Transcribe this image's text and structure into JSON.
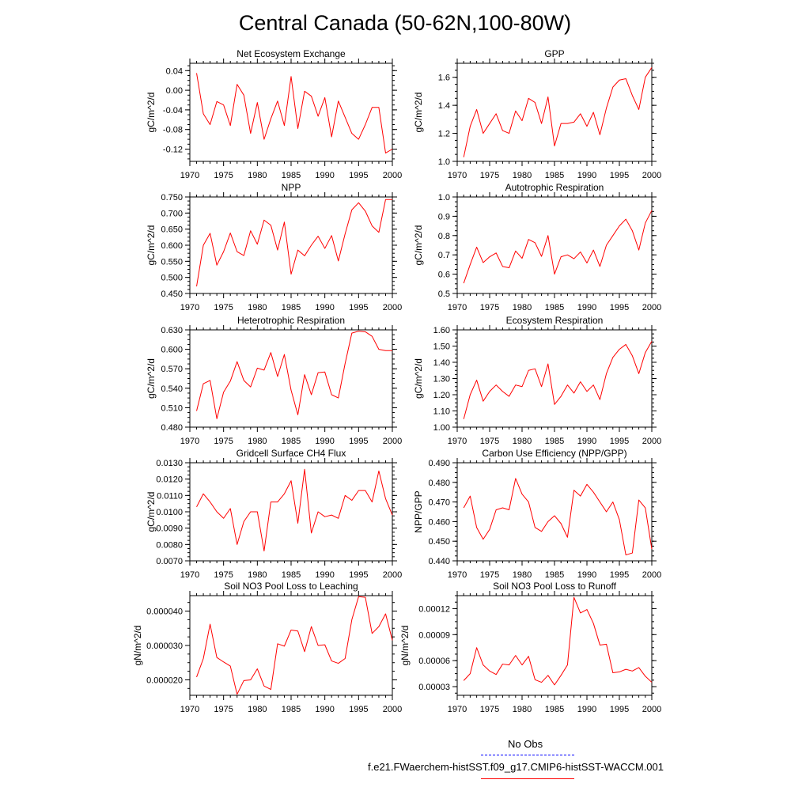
{
  "title": "Central Canada (50-62N,100-80W)",
  "legend": {
    "entries": [
      {
        "label": "No Obs",
        "color": "#0000ff",
        "style": "dashed"
      },
      {
        "label": "f.e21.FWaerchem-histSST.f09_g17.CMIP6-histSST-WACCM.001",
        "color": "#ff0000",
        "style": "solid"
      }
    ]
  },
  "chart_data": [
    {
      "type": "line",
      "title": "Net Ecosystem Exchange",
      "ylabel": "gC/m^2/d",
      "xlim": [
        1970,
        2000
      ],
      "ylim": [
        -0.145,
        0.055
      ],
      "xticks": [
        1970,
        1975,
        1980,
        1985,
        1990,
        1995,
        2000
      ],
      "yticks": [
        "0.04",
        "0.00",
        "-0.04",
        "-0.08",
        "-0.12"
      ],
      "yminor": 0.01,
      "series": [
        {
          "color": "#ff0000",
          "x": [
            1971,
            1972,
            1973,
            1974,
            1975,
            1976,
            1977,
            1978,
            1979,
            1980,
            1981,
            1982,
            1983,
            1984,
            1985,
            1986,
            1987,
            1988,
            1989,
            1990,
            1991,
            1992,
            1993,
            1994,
            1995,
            1996,
            1997,
            1998,
            1999,
            2000
          ],
          "values": [
            0.035,
            -0.048,
            -0.07,
            -0.023,
            -0.03,
            -0.072,
            0.012,
            -0.01,
            -0.088,
            -0.025,
            -0.1,
            -0.058,
            -0.022,
            -0.072,
            0.028,
            -0.078,
            -0.002,
            -0.012,
            -0.053,
            -0.015,
            -0.095,
            -0.022,
            -0.055,
            -0.088,
            -0.1,
            -0.07,
            -0.035,
            -0.035,
            -0.128,
            -0.12
          ]
        }
      ]
    },
    {
      "type": "line",
      "title": "GPP",
      "ylabel": "gC/m^2/d",
      "xlim": [
        1970,
        2000
      ],
      "ylim": [
        1.0,
        1.7
      ],
      "xticks": [
        1970,
        1975,
        1980,
        1985,
        1990,
        1995,
        2000
      ],
      "yticks": [
        "1.0",
        "1.2",
        "1.4",
        "1.6"
      ],
      "yminor": 0.05,
      "series": [
        {
          "color": "#ff0000",
          "x": [
            1971,
            1972,
            1973,
            1974,
            1975,
            1976,
            1977,
            1978,
            1979,
            1980,
            1981,
            1982,
            1983,
            1984,
            1985,
            1986,
            1987,
            1988,
            1989,
            1990,
            1991,
            1992,
            1993,
            1994,
            1995,
            1996,
            1997,
            1998,
            1999,
            2000
          ],
          "values": [
            1.03,
            1.25,
            1.37,
            1.2,
            1.27,
            1.34,
            1.22,
            1.2,
            1.36,
            1.29,
            1.45,
            1.42,
            1.27,
            1.46,
            1.11,
            1.27,
            1.27,
            1.28,
            1.34,
            1.25,
            1.35,
            1.19,
            1.38,
            1.53,
            1.58,
            1.59,
            1.47,
            1.37,
            1.6,
            1.67
          ]
        }
      ]
    },
    {
      "type": "line",
      "title": "NPP",
      "ylabel": "gC/m^2/d",
      "xlim": [
        1970,
        2000
      ],
      "ylim": [
        0.45,
        0.75
      ],
      "xticks": [
        1970,
        1975,
        1980,
        1985,
        1990,
        1995,
        2000
      ],
      "yticks": [
        "0.750",
        "0.700",
        "0.650",
        "0.600",
        "0.550",
        "0.500",
        "0.450"
      ],
      "yminor": 0.0125,
      "series": [
        {
          "color": "#ff0000",
          "x": [
            1971,
            1972,
            1973,
            1974,
            1975,
            1976,
            1977,
            1978,
            1979,
            1980,
            1981,
            1982,
            1983,
            1984,
            1985,
            1986,
            1987,
            1988,
            1989,
            1990,
            1991,
            1992,
            1993,
            1994,
            1995,
            1996,
            1997,
            1998,
            1999,
            2000
          ],
          "values": [
            0.472,
            0.6,
            0.637,
            0.538,
            0.58,
            0.638,
            0.58,
            0.568,
            0.645,
            0.603,
            0.678,
            0.662,
            0.585,
            0.672,
            0.51,
            0.585,
            0.567,
            0.6,
            0.628,
            0.59,
            0.63,
            0.551,
            0.635,
            0.71,
            0.732,
            0.706,
            0.66,
            0.64,
            0.742,
            0.742
          ]
        }
      ]
    },
    {
      "type": "line",
      "title": "Autotrophic Respiration",
      "ylabel": "gC/m^2/d",
      "xlim": [
        1970,
        2000
      ],
      "ylim": [
        0.5,
        1.0
      ],
      "xticks": [
        1970,
        1975,
        1980,
        1985,
        1990,
        1995,
        2000
      ],
      "yticks": [
        "1.0",
        "0.9",
        "0.8",
        "0.7",
        "0.6",
        "0.5"
      ],
      "yminor": 0.025,
      "series": [
        {
          "color": "#ff0000",
          "x": [
            1971,
            1972,
            1973,
            1974,
            1975,
            1976,
            1977,
            1978,
            1979,
            1980,
            1981,
            1982,
            1983,
            1984,
            1985,
            1986,
            1987,
            1988,
            1989,
            1990,
            1991,
            1992,
            1993,
            1994,
            1995,
            1996,
            1997,
            1998,
            1999,
            2000
          ],
          "values": [
            0.553,
            0.65,
            0.74,
            0.66,
            0.69,
            0.71,
            0.64,
            0.633,
            0.72,
            0.682,
            0.78,
            0.763,
            0.692,
            0.8,
            0.6,
            0.69,
            0.7,
            0.68,
            0.715,
            0.658,
            0.725,
            0.64,
            0.75,
            0.8,
            0.85,
            0.885,
            0.825,
            0.725,
            0.865,
            0.93
          ]
        }
      ]
    },
    {
      "type": "line",
      "title": "Heterotrophic Respiration",
      "ylabel": "gC/m^2/d",
      "xlim": [
        1970,
        2000
      ],
      "ylim": [
        0.48,
        0.63
      ],
      "xticks": [
        1970,
        1975,
        1980,
        1985,
        1990,
        1995,
        2000
      ],
      "yticks": [
        "0.630",
        "0.600",
        "0.570",
        "0.540",
        "0.510",
        "0.480"
      ],
      "yminor": 0.0075,
      "series": [
        {
          "color": "#ff0000",
          "x": [
            1971,
            1972,
            1973,
            1974,
            1975,
            1976,
            1977,
            1978,
            1979,
            1980,
            1981,
            1982,
            1983,
            1984,
            1985,
            1986,
            1987,
            1988,
            1989,
            1990,
            1991,
            1992,
            1993,
            1994,
            1995,
            1996,
            1997,
            1998,
            1999,
            2000
          ],
          "values": [
            0.505,
            0.547,
            0.552,
            0.493,
            0.534,
            0.551,
            0.581,
            0.552,
            0.542,
            0.571,
            0.568,
            0.595,
            0.558,
            0.592,
            0.537,
            0.499,
            0.561,
            0.53,
            0.564,
            0.565,
            0.53,
            0.525,
            0.578,
            0.625,
            0.628,
            0.627,
            0.62,
            0.6,
            0.598,
            0.598
          ]
        }
      ]
    },
    {
      "type": "line",
      "title": "Ecosystem Respiration",
      "ylabel": "gC/m^2/d",
      "xlim": [
        1970,
        2000
      ],
      "ylim": [
        1.0,
        1.6
      ],
      "xticks": [
        1970,
        1975,
        1980,
        1985,
        1990,
        1995,
        2000
      ],
      "yticks": [
        "1.60",
        "1.50",
        "1.40",
        "1.30",
        "1.20",
        "1.10",
        "1.00"
      ],
      "yminor": 0.025,
      "series": [
        {
          "color": "#ff0000",
          "x": [
            1971,
            1972,
            1973,
            1974,
            1975,
            1976,
            1977,
            1978,
            1979,
            1980,
            1981,
            1982,
            1983,
            1984,
            1985,
            1986,
            1987,
            1988,
            1989,
            1990,
            1991,
            1992,
            1993,
            1994,
            1995,
            1996,
            1997,
            1998,
            1999,
            2000
          ],
          "values": [
            1.05,
            1.2,
            1.29,
            1.16,
            1.22,
            1.26,
            1.22,
            1.19,
            1.26,
            1.25,
            1.35,
            1.36,
            1.25,
            1.39,
            1.14,
            1.19,
            1.26,
            1.21,
            1.28,
            1.22,
            1.26,
            1.17,
            1.33,
            1.43,
            1.48,
            1.51,
            1.44,
            1.33,
            1.46,
            1.53
          ]
        }
      ]
    },
    {
      "type": "line",
      "title": "Gridcell Surface CH4 Flux",
      "ylabel": "gC/m^2/d",
      "xlim": [
        1970,
        2000
      ],
      "ylim": [
        0.007,
        0.013
      ],
      "xticks": [
        1970,
        1975,
        1980,
        1985,
        1990,
        1995,
        2000
      ],
      "yticks": [
        "0.0130",
        "0.0120",
        "0.0110",
        "0.0100",
        "0.0090",
        "0.0080",
        "0.0070"
      ],
      "yminor": 0.00025,
      "series": [
        {
          "color": "#ff0000",
          "x": [
            1971,
            1972,
            1973,
            1974,
            1975,
            1976,
            1977,
            1978,
            1979,
            1980,
            1981,
            1982,
            1983,
            1984,
            1985,
            1986,
            1987,
            1988,
            1989,
            1990,
            1991,
            1992,
            1993,
            1994,
            1995,
            1996,
            1997,
            1998,
            1999,
            2000
          ],
          "values": [
            0.0103,
            0.0111,
            0.0106,
            0.01,
            0.0096,
            0.0102,
            0.008,
            0.0094,
            0.01,
            0.01,
            0.0076,
            0.0106,
            0.0106,
            0.0111,
            0.0119,
            0.0093,
            0.0126,
            0.0087,
            0.01,
            0.0097,
            0.0098,
            0.0096,
            0.011,
            0.0107,
            0.0113,
            0.0113,
            0.0106,
            0.0125,
            0.0108,
            0.0098
          ]
        }
      ]
    },
    {
      "type": "line",
      "title": "Carbon Use Efficiency (NPP/GPP)",
      "ylabel": "NPP/GPP",
      "xlim": [
        1970,
        2000
      ],
      "ylim": [
        0.44,
        0.49
      ],
      "xticks": [
        1970,
        1975,
        1980,
        1985,
        1990,
        1995,
        2000
      ],
      "yticks": [
        "0.490",
        "0.480",
        "0.470",
        "0.460",
        "0.450",
        "0.440"
      ],
      "yminor": 0.0025,
      "series": [
        {
          "color": "#ff0000",
          "x": [
            1971,
            1972,
            1973,
            1974,
            1975,
            1976,
            1977,
            1978,
            1979,
            1980,
            1981,
            1982,
            1983,
            1984,
            1985,
            1986,
            1987,
            1988,
            1989,
            1990,
            1991,
            1992,
            1993,
            1994,
            1995,
            1996,
            1997,
            1998,
            1999,
            2000
          ],
          "values": [
            0.467,
            0.473,
            0.457,
            0.451,
            0.456,
            0.466,
            0.467,
            0.466,
            0.482,
            0.474,
            0.47,
            0.457,
            0.455,
            0.46,
            0.463,
            0.459,
            0.452,
            0.476,
            0.473,
            0.479,
            0.475,
            0.47,
            0.465,
            0.47,
            0.461,
            0.443,
            0.444,
            0.471,
            0.467,
            0.446
          ]
        }
      ]
    },
    {
      "type": "line",
      "title": "Soil NO3 Pool Loss to Leaching",
      "ylabel": "gN/m^2/d",
      "xlim": [
        1970,
        2000
      ],
      "ylim": [
        1.55e-05,
        4.45e-05
      ],
      "xticks": [
        1970,
        1975,
        1980,
        1985,
        1990,
        1995,
        2000
      ],
      "yticks": [
        "0.000040",
        "0.000030",
        "0.000020"
      ],
      "yticks_values": [
        4e-05,
        3e-05,
        2e-05
      ],
      "yminor": 2.5e-06,
      "series": [
        {
          "color": "#ff0000",
          "x": [
            1971,
            1972,
            1973,
            1974,
            1975,
            1976,
            1977,
            1978,
            1979,
            1980,
            1981,
            1982,
            1983,
            1984,
            1985,
            1986,
            1987,
            1988,
            1989,
            1990,
            1991,
            1992,
            1993,
            1994,
            1995,
            1996,
            1997,
            1998,
            1999,
            2000
          ],
          "values": [
            2.08e-05,
            2.62e-05,
            3.62e-05,
            2.65e-05,
            2.52e-05,
            2.4e-05,
            1.58e-05,
            1.98e-05,
            2e-05,
            2.32e-05,
            1.82e-05,
            1.72e-05,
            3.05e-05,
            2.98e-05,
            3.45e-05,
            3.42e-05,
            2.82e-05,
            3.55e-05,
            3e-05,
            3.02e-05,
            2.55e-05,
            2.48e-05,
            2.62e-05,
            3.75e-05,
            4.42e-05,
            4.4e-05,
            3.35e-05,
            3.55e-05,
            3.92e-05,
            3.15e-05
          ]
        }
      ]
    },
    {
      "type": "line",
      "title": "Soil NO3 Pool Loss to Runoff",
      "ylabel": "gN/m^2/d",
      "xlim": [
        1970,
        2000
      ],
      "ylim": [
        2e-05,
        0.000135
      ],
      "xticks": [
        1970,
        1975,
        1980,
        1985,
        1990,
        1995,
        2000
      ],
      "yticks": [
        "0.00012",
        "0.00009",
        "0.00006",
        "0.00003"
      ],
      "yticks_values": [
        0.00012,
        9e-05,
        6e-05,
        3e-05
      ],
      "yminor": 7.5e-06,
      "series": [
        {
          "color": "#ff0000",
          "x": [
            1971,
            1972,
            1973,
            1974,
            1975,
            1976,
            1977,
            1978,
            1979,
            1980,
            1981,
            1982,
            1983,
            1984,
            1985,
            1986,
            1987,
            1988,
            1989,
            1990,
            1991,
            1992,
            1993,
            1994,
            1995,
            1996,
            1997,
            1998,
            1999,
            2000
          ],
          "values": [
            3.7e-05,
            4.5e-05,
            7.5e-05,
            5.5e-05,
            4.8e-05,
            4.4e-05,
            5.6e-05,
            5.5e-05,
            6.6e-05,
            5.5e-05,
            6.5e-05,
            3.8e-05,
            3.5e-05,
            4.3e-05,
            3.2e-05,
            4.3e-05,
            5.5e-05,
            0.000133,
            0.000115,
            0.000119,
            0.000103,
            7.8e-05,
            7.9e-05,
            4.6e-05,
            4.7e-05,
            5e-05,
            4.8e-05,
            5.2e-05,
            4.2e-05,
            3.5e-05
          ]
        }
      ]
    }
  ]
}
